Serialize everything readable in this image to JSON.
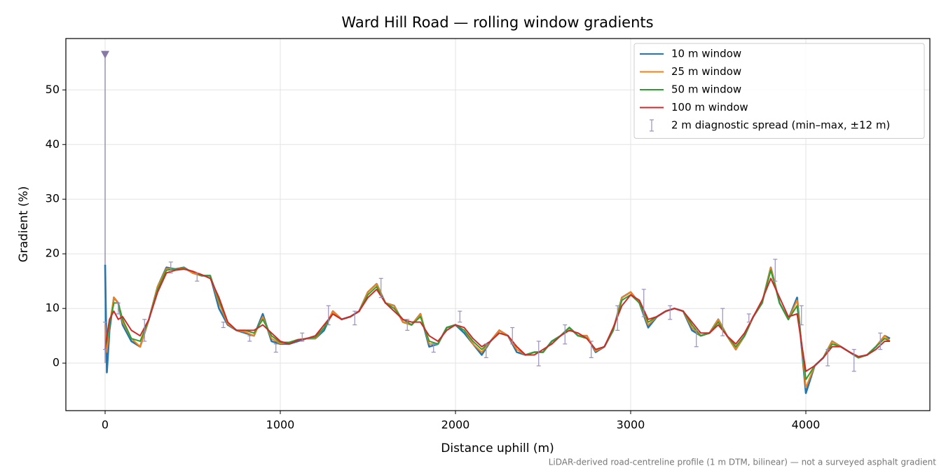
{
  "chart_data": {
    "type": "line",
    "title": "Ward Hill Road — rolling window gradients",
    "x_label": "Distance uphill (m)",
    "y_label": "Gradient (%)",
    "footnote": "LiDAR-derived road-centreline profile (1 m DTM, bilinear) — not a surveyed asphalt gradient",
    "xlim": [
      -224,
      4708
    ],
    "ylim": [
      -8.7,
      59.4
    ],
    "xticks": [
      0,
      1000,
      2000,
      3000,
      4000
    ],
    "yticks": [
      0,
      10,
      20,
      30,
      40,
      50
    ],
    "grid": true,
    "legend": "upper right",
    "x": [
      0,
      10,
      25,
      50,
      75,
      100,
      150,
      200,
      250,
      300,
      350,
      400,
      450,
      500,
      550,
      600,
      650,
      700,
      750,
      800,
      850,
      900,
      950,
      1000,
      1050,
      1100,
      1150,
      1200,
      1250,
      1300,
      1350,
      1400,
      1450,
      1500,
      1550,
      1600,
      1650,
      1700,
      1750,
      1800,
      1850,
      1900,
      1950,
      2000,
      2050,
      2100,
      2150,
      2200,
      2250,
      2300,
      2350,
      2400,
      2450,
      2500,
      2550,
      2600,
      2650,
      2700,
      2750,
      2800,
      2850,
      2900,
      2950,
      3000,
      3050,
      3100,
      3150,
      3200,
      3250,
      3300,
      3350,
      3400,
      3450,
      3500,
      3550,
      3600,
      3650,
      3700,
      3750,
      3800,
      3850,
      3900,
      3950,
      4000,
      4050,
      4100,
      4150,
      4200,
      4250,
      4300,
      4350,
      4400,
      4450,
      4480
    ],
    "series": [
      {
        "name": "10 m window",
        "color": "#1f77b4",
        "values": [
          18,
          -1.7,
          6,
          12,
          11,
          7,
          4,
          3,
          8,
          14,
          17.5,
          17.2,
          17.5,
          16.5,
          16,
          16,
          10,
          7,
          6,
          5.5,
          5,
          9,
          4,
          3.5,
          3.5,
          4,
          4.5,
          4.5,
          6,
          9.5,
          8,
          8.5,
          9.5,
          13,
          14.5,
          11,
          10.5,
          7.5,
          7,
          9,
          3,
          3.5,
          6.5,
          7,
          5.5,
          3.5,
          1.5,
          4,
          6,
          5,
          2,
          1.5,
          2,
          2,
          4,
          5,
          6.5,
          5,
          5,
          2,
          3,
          6,
          12,
          13,
          11,
          6.5,
          8.5,
          9.5,
          10,
          9.5,
          6,
          5,
          5.5,
          8,
          5,
          2.5,
          5,
          8.5,
          11,
          17.5,
          11,
          8,
          12,
          -5.5,
          -0.5,
          1,
          4,
          3,
          2,
          1,
          1.5,
          3,
          5,
          4.5
        ]
      },
      {
        "name": "25 m window",
        "color": "#ff7f0e",
        "values": [
          7,
          2,
          7,
          12,
          11,
          7.5,
          4.5,
          3,
          8,
          14,
          17.3,
          17.2,
          17.4,
          16.5,
          16,
          16,
          11,
          7.2,
          6,
          5.7,
          5,
          8.5,
          4.5,
          3.6,
          3.8,
          4.2,
          4.5,
          4.5,
          6.5,
          9.5,
          8,
          8.5,
          9.5,
          13,
          14.5,
          11,
          10.5,
          7.5,
          7,
          9,
          3.5,
          3.5,
          6.5,
          7,
          6,
          3.5,
          2,
          4,
          6,
          5,
          2.5,
          1.5,
          2,
          2,
          4,
          5,
          6.5,
          5,
          5,
          2.2,
          3,
          6,
          12,
          13,
          11,
          7,
          8.5,
          9.5,
          10,
          9.5,
          6.5,
          5,
          5.5,
          8,
          5,
          2.5,
          5,
          8.5,
          11,
          17.5,
          11,
          8,
          11.5,
          -4.5,
          -0.5,
          1,
          4,
          3,
          2,
          1,
          1.5,
          3,
          5,
          4
        ]
      },
      {
        "name": "50 m window",
        "color": "#2ca02c",
        "values": [
          3,
          4,
          7,
          11,
          11,
          8,
          4.5,
          4,
          8,
          13.5,
          17,
          17.2,
          17.3,
          16.8,
          16,
          16,
          11.5,
          7.5,
          6,
          6,
          5.5,
          8,
          5,
          3.8,
          3.8,
          4.3,
          4.5,
          4.7,
          6.5,
          9,
          8,
          8.5,
          9.5,
          12.5,
          14,
          11,
          10,
          8,
          7,
          8.5,
          4,
          3.5,
          6.5,
          7,
          6,
          4,
          2.5,
          4,
          5.5,
          5,
          3,
          1.5,
          2,
          2,
          4,
          5,
          6.5,
          5,
          4.5,
          2.5,
          3,
          6,
          11.5,
          12.5,
          11,
          7.5,
          8.5,
          9.5,
          10,
          9.5,
          7,
          5,
          5.5,
          7.5,
          5,
          3,
          5,
          8.5,
          11,
          17,
          11,
          8,
          10.5,
          -3,
          -0.5,
          1,
          3.5,
          3,
          2,
          1,
          1.5,
          3,
          4.5,
          4
        ]
      },
      {
        "name": "100 m window",
        "color": "#d62728",
        "values": [
          2.5,
          5,
          8,
          9.5,
          8,
          8.5,
          6,
          5,
          8,
          13,
          16.5,
          17,
          17.2,
          16.8,
          16.2,
          15.5,
          12,
          7.5,
          6,
          6,
          6,
          7,
          5.5,
          4,
          3.5,
          4.2,
          4.5,
          5,
          7,
          9,
          8,
          8.5,
          9.5,
          12,
          13.5,
          11,
          9.5,
          8,
          7.5,
          7.5,
          5,
          4,
          6,
          7,
          6.5,
          4.5,
          3,
          4,
          5.5,
          5,
          3,
          1.5,
          1.5,
          2.5,
          3.5,
          5,
          6,
          5.5,
          4.5,
          2.5,
          3,
          6.5,
          10.5,
          12.5,
          11.5,
          8,
          8.5,
          9.5,
          10,
          9.5,
          7.5,
          5.5,
          5.5,
          7,
          5,
          3.5,
          5.5,
          8.5,
          11.5,
          15.5,
          12,
          8.5,
          9,
          -1.5,
          -0.5,
          1,
          3,
          3,
          2,
          1.2,
          1.5,
          2.5,
          4,
          4
        ]
      }
    ],
    "spread": {
      "name": "2 m diagnostic spread (min–max, ±12 m)",
      "color": "#9890bc",
      "x": [
        0,
        75,
        225,
        375,
        525,
        675,
        825,
        975,
        1125,
        1275,
        1425,
        1575,
        1725,
        1875,
        2025,
        2175,
        2325,
        2475,
        2625,
        2775,
        2925,
        3075,
        3225,
        3375,
        3525,
        3675,
        3825,
        3975,
        4125,
        4275,
        4425
      ],
      "low": [
        2.5,
        9,
        4,
        16.5,
        15,
        6.5,
        4,
        2,
        4,
        7,
        7,
        12,
        6,
        2,
        7.5,
        1,
        3.5,
        -0.5,
        3.5,
        1,
        6,
        8.5,
        8,
        3,
        5,
        7.5,
        15,
        7,
        -0.5,
        -1.5,
        2.5
      ],
      "high": [
        7.5,
        11,
        8,
        18.5,
        16.5,
        7.5,
        5,
        3.5,
        5.5,
        10.5,
        9.5,
        15.5,
        8,
        3.5,
        9.5,
        3.5,
        6.5,
        4,
        7,
        4,
        10.5,
        13.5,
        10.5,
        6,
        10,
        9,
        19,
        10.5,
        2.5,
        2.5,
        5.5
      ]
    },
    "spike": {
      "x": 0,
      "y": 56.5,
      "color": "#8878a8"
    }
  }
}
